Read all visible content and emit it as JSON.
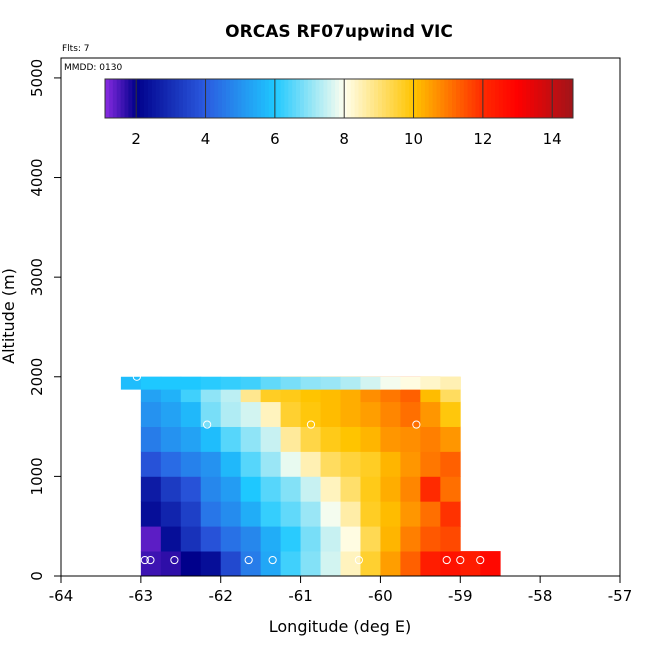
{
  "chart_data": {
    "type": "heatmap",
    "title": "ORCAS RF07upwind VIC",
    "annotations": {
      "flights": "Flts: 7",
      "date": "MMDD: 0130"
    },
    "xlabel": "Longitude (deg E)",
    "ylabel": "Altitude (m)",
    "xlim": [
      -64,
      -57
    ],
    "ylim": [
      0,
      5200
    ],
    "xticks": [
      -64,
      -63,
      -62,
      -61,
      -60,
      -59,
      -58,
      -57
    ],
    "yticks": [
      0,
      1000,
      2000,
      3000,
      4000,
      5000
    ],
    "colorbar": {
      "min": 1.1,
      "max": 14.6,
      "ticks": [
        2,
        4,
        6,
        8,
        10,
        12,
        14
      ],
      "stops": [
        {
          "v": 1.1,
          "color": "#8a2be2"
        },
        {
          "v": 2.0,
          "color": "#00008b"
        },
        {
          "v": 4.0,
          "color": "#2b5be0"
        },
        {
          "v": 6.0,
          "color": "#1ec8ff"
        },
        {
          "v": 8.0,
          "color": "#ffffee"
        },
        {
          "v": 10.0,
          "color": "#ffc400"
        },
        {
          "v": 12.0,
          "color": "#ff2a00"
        },
        {
          "v": 13.0,
          "color": "#ff0000"
        },
        {
          "v": 14.6,
          "color": "#a0151a"
        }
      ]
    },
    "grid": {
      "lon_start": -63.25,
      "lon_step": 0.25,
      "alt_step": 250,
      "rows": [
        {
          "alt": 0,
          "lon_start": -63.0,
          "values": [
            1.6,
            1.7,
            2.0,
            2.3,
            3.6,
            4.6,
            5.4,
            6.3,
            6.9,
            7.6,
            8.4,
            9.6,
            10.5,
            11.3,
            12.3,
            12.6,
            12.3,
            12.8
          ]
        },
        {
          "alt": 250,
          "lon_start": -63.0,
          "values": [
            1.4,
            2.3,
            3.1,
            3.8,
            4.4,
            4.8,
            5.5,
            6.1,
            6.8,
            7.5,
            8.1,
            9.3,
            10.2,
            10.9,
            11.4,
            11.6
          ]
        },
        {
          "alt": 500,
          "lon_start": -63.0,
          "values": [
            2.3,
            2.8,
            3.4,
            4.5,
            4.9,
            5.5,
            6.2,
            6.6,
            7.1,
            7.9,
            8.6,
            9.7,
            10.1,
            10.6,
            11.1,
            11.9
          ]
        },
        {
          "alt": 750,
          "lon_start": -63.0,
          "values": [
            2.6,
            3.3,
            3.8,
            4.8,
            5.2,
            6.0,
            6.5,
            6.9,
            7.5,
            8.4,
            9.1,
            9.8,
            10.3,
            10.8,
            12.0,
            11.1
          ]
        },
        {
          "alt": 1000,
          "lon_start": -63.0,
          "values": [
            3.8,
            4.3,
            4.7,
            5.0,
            5.7,
            6.5,
            7.1,
            7.8,
            8.5,
            9.2,
            9.5,
            9.7,
            10.2,
            10.6,
            11.0,
            11.3
          ]
        },
        {
          "alt": 1250,
          "lon_start": -63.0,
          "values": [
            4.6,
            5.0,
            5.3,
            5.8,
            6.5,
            7.0,
            7.5,
            8.7,
            9.4,
            9.8,
            10.0,
            10.2,
            10.6,
            10.7,
            10.9,
            10.6
          ]
        },
        {
          "alt": 1500,
          "lon_start": -63.0,
          "values": [
            5.0,
            5.3,
            5.7,
            6.8,
            7.3,
            7.6,
            8.4,
            9.6,
            9.9,
            10.1,
            10.3,
            10.5,
            10.8,
            11.1,
            10.6,
            9.9
          ]
        },
        {
          "alt": 1750,
          "lon_start": -63.0,
          "values": [
            5.3,
            5.6,
            6.3,
            7.0,
            7.4,
            8.8,
            9.7,
            9.8,
            10.0,
            10.1,
            10.3,
            10.7,
            11.0,
            11.3,
            10.1,
            9.2
          ]
        },
        {
          "alt": 1875,
          "lon_start": -63.25,
          "height": 125,
          "values": [
            5.8
          ]
        },
        {
          "alt": 1875,
          "lon_start": -63.0,
          "height": 125,
          "values": [
            6.0,
            6.0,
            6.0,
            6.1,
            6.2,
            6.3,
            6.6,
            6.8,
            7.0,
            7.1,
            7.3,
            7.6,
            7.9,
            8.1,
            8.3,
            8.5
          ]
        }
      ]
    },
    "flight_points": [
      {
        "lon": -63.05,
        "alt": 2000
      },
      {
        "lon": -62.95,
        "alt": 160
      },
      {
        "lon": -62.88,
        "alt": 160
      },
      {
        "lon": -62.58,
        "alt": 160
      },
      {
        "lon": -62.17,
        "alt": 1520
      },
      {
        "lon": -61.65,
        "alt": 160
      },
      {
        "lon": -61.35,
        "alt": 160
      },
      {
        "lon": -60.87,
        "alt": 1520
      },
      {
        "lon": -60.27,
        "alt": 160
      },
      {
        "lon": -59.55,
        "alt": 1520
      },
      {
        "lon": -59.17,
        "alt": 160
      },
      {
        "lon": -59.0,
        "alt": 160
      },
      {
        "lon": -58.75,
        "alt": 160
      }
    ]
  }
}
